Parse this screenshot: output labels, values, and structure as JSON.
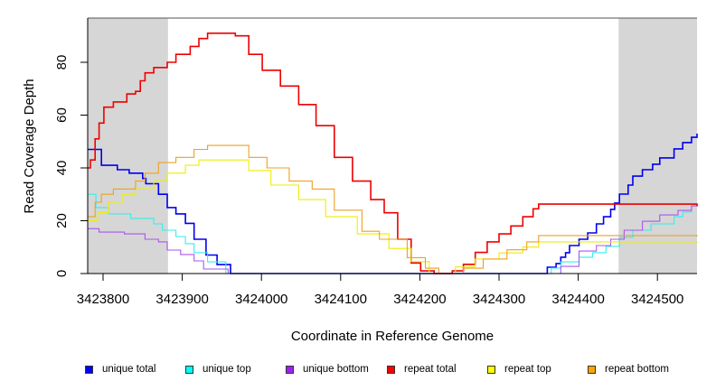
{
  "chart_data": {
    "type": "line",
    "title": "",
    "xlabel": "Coordinate in Reference Genome",
    "ylabel": "Read Coverage Depth",
    "xlim": [
      3423780.6,
      3424550
    ],
    "ylim": [
      0,
      96.75
    ],
    "x_ticks": [
      3423800,
      3423900,
      3424000,
      3424100,
      3424200,
      3424300,
      3424400,
      3424500
    ],
    "x_tick_labels": [
      "3423800",
      "3423900",
      "3424000",
      "3424100",
      "3424200",
      "3424300",
      "3424400",
      "3424500"
    ],
    "y_ticks": [
      0,
      20,
      40,
      60,
      80
    ],
    "y_tick_labels": [
      "0",
      "20",
      "40",
      "60",
      "80"
    ],
    "grid": false,
    "legend_position": "bottom",
    "shaded_regions": [
      {
        "x0": 3423780.6,
        "x1": 3423882,
        "color": "#d6d6d6"
      },
      {
        "x0": 3424451,
        "x1": 3424550,
        "color": "#d6d6d6"
      }
    ],
    "series": [
      {
        "name": "unique total",
        "color": "#0000ee",
        "width": 1.6,
        "points": [
          [
            3423781,
            47
          ],
          [
            3423790,
            47
          ],
          [
            3423798,
            41
          ],
          [
            3423818,
            41
          ],
          [
            3423818,
            39.3
          ],
          [
            3423833,
            39.3
          ],
          [
            3423833,
            38
          ],
          [
            3423850,
            38
          ],
          [
            3423850,
            36
          ],
          [
            3423854,
            36
          ],
          [
            3423854,
            34
          ],
          [
            3423866,
            34
          ],
          [
            3423870,
            30
          ],
          [
            3423881,
            30
          ],
          [
            3423881,
            25
          ],
          [
            3423892,
            25
          ],
          [
            3423892,
            22.6
          ],
          [
            3423898,
            22.6
          ],
          [
            3423904,
            19
          ],
          [
            3423910,
            19
          ],
          [
            3423915,
            13
          ],
          [
            3423927,
            13
          ],
          [
            3423930,
            7
          ],
          [
            3423938,
            7
          ],
          [
            3423944,
            3.4
          ],
          [
            3423955,
            3.4
          ],
          [
            3423961,
            0
          ],
          [
            3424356,
            0
          ],
          [
            3424361,
            2.4
          ],
          [
            3424372,
            3.8
          ],
          [
            3424378,
            6.2
          ],
          [
            3424384,
            7.9
          ],
          [
            3424389,
            10.6
          ],
          [
            3424401,
            13
          ],
          [
            3424412,
            15.4
          ],
          [
            3424423,
            18.8
          ],
          [
            3424432,
            21.5
          ],
          [
            3424441,
            24.3
          ],
          [
            3424446,
            26.7
          ],
          [
            3424452,
            30.1
          ],
          [
            3424463,
            33.5
          ],
          [
            3424469,
            36.9
          ],
          [
            3424481,
            39.3
          ],
          [
            3424494,
            41.4
          ],
          [
            3424503,
            43.8
          ],
          [
            3424521,
            47.2
          ],
          [
            3424532,
            49.6
          ],
          [
            3424543,
            51.6
          ],
          [
            3424550,
            53
          ]
        ]
      },
      {
        "name": "unique top",
        "color": "#33eeee",
        "width": 1.1,
        "points": [
          [
            3423781,
            30
          ],
          [
            3423784,
            30
          ],
          [
            3423791,
            25
          ],
          [
            3423807,
            25
          ],
          [
            3423807,
            22.6
          ],
          [
            3423835,
            22.6
          ],
          [
            3423835,
            20.9
          ],
          [
            3423864,
            20.9
          ],
          [
            3423864,
            18.8
          ],
          [
            3423875,
            18.8
          ],
          [
            3423875,
            16.4
          ],
          [
            3423892,
            16.4
          ],
          [
            3423892,
            14
          ],
          [
            3423904,
            14
          ],
          [
            3423904,
            11.3
          ],
          [
            3423915,
            11.3
          ],
          [
            3423915,
            7.9
          ],
          [
            3423932,
            7.9
          ],
          [
            3423932,
            4.4
          ],
          [
            3423950,
            4.4
          ],
          [
            3423955,
            0
          ],
          [
            3424356,
            0
          ],
          [
            3424366,
            2.1
          ],
          [
            3424378,
            4.4
          ],
          [
            3424401,
            6.2
          ],
          [
            3424418,
            7.9
          ],
          [
            3424435,
            10.3
          ],
          [
            3424452,
            13.7
          ],
          [
            3424469,
            16.4
          ],
          [
            3424492,
            18.8
          ],
          [
            3424521,
            21.5
          ],
          [
            3424532,
            23.3
          ],
          [
            3424543,
            25.6
          ],
          [
            3424550,
            26.3
          ]
        ]
      },
      {
        "name": "unique bottom",
        "color": "#aa55ee",
        "width": 1.1,
        "points": [
          [
            3423781,
            17
          ],
          [
            3423795,
            17
          ],
          [
            3423795,
            15.7
          ],
          [
            3423827,
            15.7
          ],
          [
            3423827,
            15
          ],
          [
            3423853,
            15
          ],
          [
            3423853,
            13
          ],
          [
            3423870,
            13
          ],
          [
            3423870,
            12
          ],
          [
            3423881,
            12
          ],
          [
            3423881,
            8.9
          ],
          [
            3423898,
            8.9
          ],
          [
            3423898,
            7.2
          ],
          [
            3423915,
            7.2
          ],
          [
            3423915,
            4.8
          ],
          [
            3423927,
            4.8
          ],
          [
            3423927,
            1.7
          ],
          [
            3423955,
            1.7
          ],
          [
            3423958,
            0
          ],
          [
            3424357,
            0
          ],
          [
            3424378,
            2.7
          ],
          [
            3424401,
            8.5
          ],
          [
            3424423,
            10.6
          ],
          [
            3424441,
            13
          ],
          [
            3424458,
            16.4
          ],
          [
            3424481,
            19.8
          ],
          [
            3424503,
            22.2
          ],
          [
            3424526,
            23.9
          ],
          [
            3424543,
            25.6
          ],
          [
            3424550,
            26.3
          ]
        ]
      },
      {
        "name": "repeat total",
        "color": "#ee0000",
        "width": 1.6,
        "points": [
          [
            3423781,
            40
          ],
          [
            3423784,
            43
          ],
          [
            3423790,
            51
          ],
          [
            3423795,
            57
          ],
          [
            3423801,
            63
          ],
          [
            3423813,
            65
          ],
          [
            3423830,
            68
          ],
          [
            3423841,
            69
          ],
          [
            3423847,
            73
          ],
          [
            3423853,
            76
          ],
          [
            3423864,
            78
          ],
          [
            3423881,
            80
          ],
          [
            3423892,
            83
          ],
          [
            3423910,
            86
          ],
          [
            3423921,
            89
          ],
          [
            3423932,
            91
          ],
          [
            3423950,
            91
          ],
          [
            3423967,
            90
          ],
          [
            3423984,
            83
          ],
          [
            3424001,
            77
          ],
          [
            3424024,
            71
          ],
          [
            3424047,
            64
          ],
          [
            3424069,
            56
          ],
          [
            3424092,
            44
          ],
          [
            3424115,
            35
          ],
          [
            3424138,
            28
          ],
          [
            3424155,
            23
          ],
          [
            3424172,
            13
          ],
          [
            3424189,
            4
          ],
          [
            3424201,
            1
          ],
          [
            3424218,
            0
          ],
          [
            3424235,
            0
          ],
          [
            3424241,
            1
          ],
          [
            3424255,
            3.5
          ],
          [
            3424270,
            8
          ],
          [
            3424285,
            12
          ],
          [
            3424300,
            15
          ],
          [
            3424315,
            18
          ],
          [
            3424330,
            21.5
          ],
          [
            3424343,
            24.5
          ],
          [
            3424350,
            26.3
          ],
          [
            3424538,
            26.3
          ],
          [
            3424550,
            25.5
          ]
        ]
      },
      {
        "name": "repeat top",
        "color": "#eeee00",
        "width": 1.1,
        "points": [
          [
            3423781,
            20
          ],
          [
            3423793,
            23
          ],
          [
            3423807,
            27
          ],
          [
            3423824,
            30
          ],
          [
            3423841,
            32
          ],
          [
            3423864,
            35
          ],
          [
            3423881,
            38
          ],
          [
            3423904,
            41
          ],
          [
            3423921,
            43
          ],
          [
            3423955,
            43
          ],
          [
            3423984,
            39
          ],
          [
            3424012,
            33.5
          ],
          [
            3424047,
            28
          ],
          [
            3424081,
            21.5
          ],
          [
            3424121,
            15
          ],
          [
            3424161,
            9.5
          ],
          [
            3424189,
            4.5
          ],
          [
            3424212,
            0
          ],
          [
            3424224,
            0
          ],
          [
            3424245,
            2.5
          ],
          [
            3424270,
            5.5
          ],
          [
            3424300,
            7.8
          ],
          [
            3424330,
            10
          ],
          [
            3424350,
            12
          ],
          [
            3424538,
            12
          ],
          [
            3424550,
            11.5
          ]
        ]
      },
      {
        "name": "repeat bottom",
        "color": "#eea020",
        "width": 1.1,
        "points": [
          [
            3423781,
            21.5
          ],
          [
            3423790,
            27
          ],
          [
            3423798,
            30
          ],
          [
            3423813,
            32
          ],
          [
            3423841,
            35
          ],
          [
            3423853,
            38
          ],
          [
            3423870,
            42
          ],
          [
            3423892,
            44
          ],
          [
            3423915,
            47
          ],
          [
            3423932,
            48.5
          ],
          [
            3423972,
            48.5
          ],
          [
            3423984,
            44
          ],
          [
            3424007,
            40
          ],
          [
            3424035,
            35
          ],
          [
            3424064,
            32
          ],
          [
            3424092,
            24
          ],
          [
            3424127,
            16
          ],
          [
            3424149,
            13
          ],
          [
            3424184,
            6
          ],
          [
            3424207,
            2
          ],
          [
            3424224,
            0
          ],
          [
            3424235,
            0
          ],
          [
            3424255,
            2
          ],
          [
            3424280,
            5.5
          ],
          [
            3424310,
            9
          ],
          [
            3424335,
            12
          ],
          [
            3424350,
            14.4
          ],
          [
            3424538,
            14.4
          ],
          [
            3424550,
            14
          ]
        ]
      }
    ]
  }
}
